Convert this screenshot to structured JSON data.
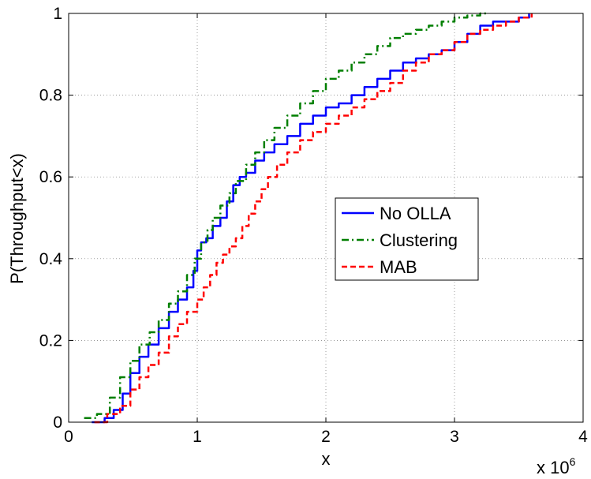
{
  "chart_data": {
    "type": "line",
    "title": "",
    "xlabel": "x",
    "ylabel": "P(Throughput<x)",
    "x_multiplier_label": "x 10",
    "x_multiplier_exp": "6",
    "xlim": [
      0,
      4
    ],
    "ylim": [
      0,
      1
    ],
    "xticks": [
      "0",
      "1",
      "2",
      "3",
      "4"
    ],
    "yticks": [
      "0",
      "0.2",
      "0.4",
      "0.6",
      "0.8",
      "1"
    ],
    "grid": true,
    "legend_position": "center-right",
    "series": [
      {
        "name": "No OLLA",
        "color": "#0000ff",
        "style": "solid",
        "x": [
          0.18,
          0.28,
          0.35,
          0.42,
          0.48,
          0.55,
          0.62,
          0.7,
          0.78,
          0.85,
          0.92,
          0.97,
          1.0,
          1.03,
          1.07,
          1.12,
          1.18,
          1.23,
          1.28,
          1.33,
          1.38,
          1.45,
          1.52,
          1.6,
          1.7,
          1.8,
          1.9,
          2.0,
          2.1,
          2.2,
          2.3,
          2.4,
          2.5,
          2.6,
          2.7,
          2.8,
          2.9,
          3.0,
          3.1,
          3.2,
          3.3,
          3.4,
          3.5,
          3.58
        ],
        "values": [
          0.0,
          0.01,
          0.03,
          0.07,
          0.12,
          0.16,
          0.19,
          0.23,
          0.27,
          0.3,
          0.33,
          0.37,
          0.42,
          0.44,
          0.45,
          0.48,
          0.5,
          0.54,
          0.58,
          0.6,
          0.61,
          0.64,
          0.66,
          0.68,
          0.7,
          0.73,
          0.75,
          0.77,
          0.78,
          0.8,
          0.82,
          0.84,
          0.86,
          0.88,
          0.89,
          0.9,
          0.91,
          0.93,
          0.95,
          0.97,
          0.98,
          0.98,
          0.99,
          1.0
        ]
      },
      {
        "name": "Clustering",
        "color": "#007f00",
        "style": "dashdot",
        "x": [
          0.12,
          0.22,
          0.32,
          0.4,
          0.48,
          0.55,
          0.63,
          0.7,
          0.78,
          0.85,
          0.92,
          0.98,
          1.03,
          1.08,
          1.12,
          1.18,
          1.25,
          1.3,
          1.38,
          1.45,
          1.52,
          1.6,
          1.7,
          1.8,
          1.9,
          2.0,
          2.1,
          2.2,
          2.3,
          2.4,
          2.5,
          2.6,
          2.7,
          2.8,
          2.9,
          3.0,
          3.1,
          3.2,
          3.25
        ],
        "values": [
          0.01,
          0.02,
          0.06,
          0.11,
          0.15,
          0.19,
          0.22,
          0.25,
          0.29,
          0.32,
          0.36,
          0.4,
          0.44,
          0.47,
          0.5,
          0.53,
          0.56,
          0.59,
          0.63,
          0.66,
          0.69,
          0.72,
          0.75,
          0.78,
          0.81,
          0.84,
          0.86,
          0.88,
          0.9,
          0.92,
          0.94,
          0.95,
          0.96,
          0.97,
          0.98,
          0.99,
          0.995,
          1.0,
          1.0
        ]
      },
      {
        "name": "MAB",
        "color": "#ff0000",
        "style": "dashed",
        "x": [
          0.2,
          0.3,
          0.4,
          0.48,
          0.55,
          0.62,
          0.7,
          0.78,
          0.85,
          0.92,
          1.0,
          1.05,
          1.1,
          1.15,
          1.2,
          1.25,
          1.3,
          1.35,
          1.4,
          1.45,
          1.5,
          1.55,
          1.62,
          1.7,
          1.8,
          1.9,
          2.0,
          2.1,
          2.2,
          2.3,
          2.4,
          2.5,
          2.6,
          2.7,
          2.8,
          2.9,
          3.0,
          3.1,
          3.2,
          3.3,
          3.4,
          3.5,
          3.6
        ],
        "values": [
          0.0,
          0.02,
          0.04,
          0.08,
          0.11,
          0.14,
          0.17,
          0.21,
          0.24,
          0.27,
          0.3,
          0.33,
          0.36,
          0.39,
          0.41,
          0.43,
          0.45,
          0.48,
          0.51,
          0.54,
          0.57,
          0.6,
          0.63,
          0.66,
          0.69,
          0.71,
          0.73,
          0.75,
          0.77,
          0.79,
          0.81,
          0.83,
          0.86,
          0.88,
          0.9,
          0.91,
          0.93,
          0.95,
          0.96,
          0.97,
          0.98,
          0.99,
          1.0
        ]
      }
    ]
  }
}
